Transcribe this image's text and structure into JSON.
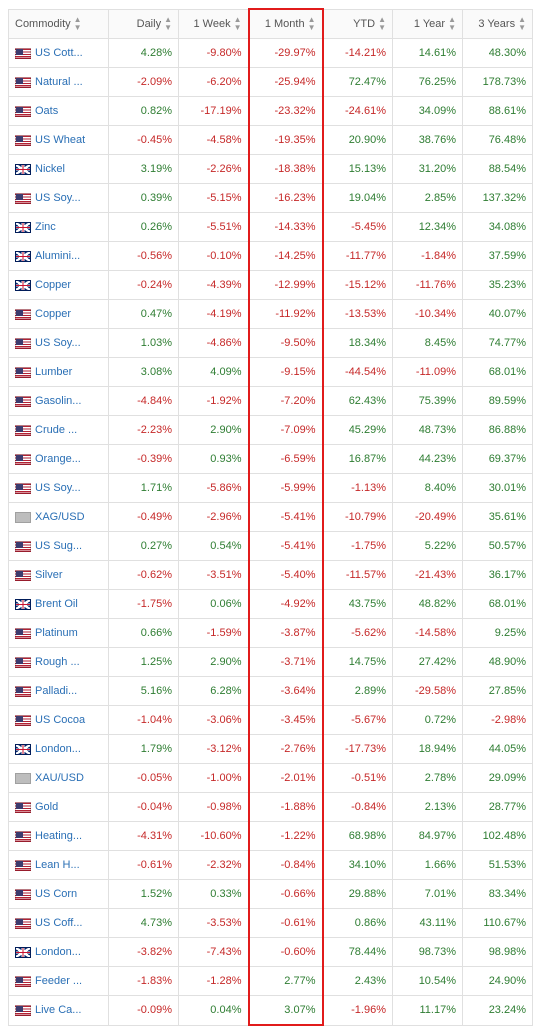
{
  "columns": [
    {
      "key": "name",
      "label": "Commodity"
    },
    {
      "key": "daily",
      "label": "Daily"
    },
    {
      "key": "week1",
      "label": "1 Week"
    },
    {
      "key": "month1",
      "label": "1 Month"
    },
    {
      "key": "ytd",
      "label": "YTD"
    },
    {
      "key": "year1",
      "label": "1 Year"
    },
    {
      "key": "year3",
      "label": "3 Years"
    }
  ],
  "highlight_column": "month1",
  "highlight_color": "#e11b1b",
  "colors": {
    "positive": "#2e7d32",
    "negative": "#c62828",
    "link": "#2a6fb5",
    "grid": "#e0e0e0",
    "header_bg": "#fafafa"
  },
  "rows": [
    {
      "flag": "us",
      "name": "US Cott...",
      "daily": 4.28,
      "week1": -9.8,
      "month1": -29.97,
      "ytd": -14.21,
      "year1": 14.61,
      "year3": 48.3
    },
    {
      "flag": "us",
      "name": "Natural ...",
      "daily": -2.09,
      "week1": -6.2,
      "month1": -25.94,
      "ytd": 72.47,
      "year1": 76.25,
      "year3": 178.73
    },
    {
      "flag": "us",
      "name": "Oats",
      "daily": 0.82,
      "week1": -17.19,
      "month1": -23.32,
      "ytd": -24.61,
      "year1": 34.09,
      "year3": 88.61
    },
    {
      "flag": "us",
      "name": "US Wheat",
      "daily": -0.45,
      "week1": -4.58,
      "month1": -19.35,
      "ytd": 20.9,
      "year1": 38.76,
      "year3": 76.48
    },
    {
      "flag": "uk",
      "name": "Nickel",
      "daily": 3.19,
      "week1": -2.26,
      "month1": -18.38,
      "ytd": 15.13,
      "year1": 31.2,
      "year3": 88.54
    },
    {
      "flag": "us",
      "name": "US Soy...",
      "daily": 0.39,
      "week1": -5.15,
      "month1": -16.23,
      "ytd": 19.04,
      "year1": 2.85,
      "year3": 137.32
    },
    {
      "flag": "uk",
      "name": "Zinc",
      "daily": 0.26,
      "week1": -5.51,
      "month1": -14.33,
      "ytd": -5.45,
      "year1": 12.34,
      "year3": 34.08
    },
    {
      "flag": "uk",
      "name": "Alumini...",
      "daily": -0.56,
      "week1": -0.1,
      "month1": -14.25,
      "ytd": -11.77,
      "year1": -1.84,
      "year3": 37.59
    },
    {
      "flag": "uk",
      "name": "Copper",
      "daily": -0.24,
      "week1": -4.39,
      "month1": -12.99,
      "ytd": -15.12,
      "year1": -11.76,
      "year3": 35.23
    },
    {
      "flag": "us",
      "name": "Copper",
      "daily": 0.47,
      "week1": -4.19,
      "month1": -11.92,
      "ytd": -13.53,
      "year1": -10.34,
      "year3": 40.07
    },
    {
      "flag": "us",
      "name": "US Soy...",
      "daily": 1.03,
      "week1": -4.86,
      "month1": -9.5,
      "ytd": 18.34,
      "year1": 8.45,
      "year3": 74.77
    },
    {
      "flag": "us",
      "name": "Lumber",
      "daily": 3.08,
      "week1": 4.09,
      "month1": -9.15,
      "ytd": -44.54,
      "year1": -11.09,
      "year3": 68.01
    },
    {
      "flag": "us",
      "name": "Gasolin...",
      "daily": -4.84,
      "week1": -1.92,
      "month1": -7.2,
      "ytd": 62.43,
      "year1": 75.39,
      "year3": 89.59
    },
    {
      "flag": "us",
      "name": "Crude ...",
      "daily": -2.23,
      "week1": 2.9,
      "month1": -7.09,
      "ytd": 45.29,
      "year1": 48.73,
      "year3": 86.88
    },
    {
      "flag": "us",
      "name": "Orange...",
      "daily": -0.39,
      "week1": 0.93,
      "month1": -6.59,
      "ytd": 16.87,
      "year1": 44.23,
      "year3": 69.37
    },
    {
      "flag": "us",
      "name": "US Soy...",
      "daily": 1.71,
      "week1": -5.86,
      "month1": -5.99,
      "ytd": -1.13,
      "year1": 8.4,
      "year3": 30.01
    },
    {
      "flag": "xx",
      "name": "XAG/USD",
      "daily": -0.49,
      "week1": -2.96,
      "month1": -5.41,
      "ytd": -10.79,
      "year1": -20.49,
      "year3": 35.61
    },
    {
      "flag": "us",
      "name": "US Sug...",
      "daily": 0.27,
      "week1": 0.54,
      "month1": -5.41,
      "ytd": -1.75,
      "year1": 5.22,
      "year3": 50.57
    },
    {
      "flag": "us",
      "name": "Silver",
      "daily": -0.62,
      "week1": -3.51,
      "month1": -5.4,
      "ytd": -11.57,
      "year1": -21.43,
      "year3": 36.17
    },
    {
      "flag": "uk",
      "name": "Brent Oil",
      "daily": -1.75,
      "week1": 0.06,
      "month1": -4.92,
      "ytd": 43.75,
      "year1": 48.82,
      "year3": 68.01
    },
    {
      "flag": "us",
      "name": "Platinum",
      "daily": 0.66,
      "week1": -1.59,
      "month1": -3.87,
      "ytd": -5.62,
      "year1": -14.58,
      "year3": 9.25
    },
    {
      "flag": "us",
      "name": "Rough ...",
      "daily": 1.25,
      "week1": 2.9,
      "month1": -3.71,
      "ytd": 14.75,
      "year1": 27.42,
      "year3": 48.9
    },
    {
      "flag": "us",
      "name": "Palladi...",
      "daily": 5.16,
      "week1": 6.28,
      "month1": -3.64,
      "ytd": 2.89,
      "year1": -29.58,
      "year3": 27.85
    },
    {
      "flag": "us",
      "name": "US Cocoa",
      "daily": -1.04,
      "week1": -3.06,
      "month1": -3.45,
      "ytd": -5.67,
      "year1": 0.72,
      "year3": -2.98
    },
    {
      "flag": "uk",
      "name": "London...",
      "daily": 1.79,
      "week1": -3.12,
      "month1": -2.76,
      "ytd": -17.73,
      "year1": 18.94,
      "year3": 44.05
    },
    {
      "flag": "xx",
      "name": "XAU/USD",
      "daily": -0.05,
      "week1": -1.0,
      "month1": -2.01,
      "ytd": -0.51,
      "year1": 2.78,
      "year3": 29.09
    },
    {
      "flag": "us",
      "name": "Gold",
      "daily": -0.04,
      "week1": -0.98,
      "month1": -1.88,
      "ytd": -0.84,
      "year1": 2.13,
      "year3": 28.77
    },
    {
      "flag": "us",
      "name": "Heating...",
      "daily": -4.31,
      "week1": -10.6,
      "month1": -1.22,
      "ytd": 68.98,
      "year1": 84.97,
      "year3": 102.48
    },
    {
      "flag": "us",
      "name": "Lean H...",
      "daily": -0.61,
      "week1": -2.32,
      "month1": -0.84,
      "ytd": 34.1,
      "year1": 1.66,
      "year3": 51.53
    },
    {
      "flag": "us",
      "name": "US Corn",
      "daily": 1.52,
      "week1": 0.33,
      "month1": -0.66,
      "ytd": 29.88,
      "year1": 7.01,
      "year3": 83.34
    },
    {
      "flag": "us",
      "name": "US Coff...",
      "daily": 4.73,
      "week1": -3.53,
      "month1": -0.61,
      "ytd": 0.86,
      "year1": 43.11,
      "year3": 110.67
    },
    {
      "flag": "uk",
      "name": "London...",
      "daily": -3.82,
      "week1": -7.43,
      "month1": -0.6,
      "ytd": 78.44,
      "year1": 98.73,
      "year3": 98.98
    },
    {
      "flag": "us",
      "name": "Feeder ...",
      "daily": -1.83,
      "week1": -1.28,
      "month1": 2.77,
      "ytd": 2.43,
      "year1": 10.54,
      "year3": 24.9
    },
    {
      "flag": "us",
      "name": "Live Ca...",
      "daily": -0.09,
      "week1": 0.04,
      "month1": 3.07,
      "ytd": -1.96,
      "year1": 11.17,
      "year3": 23.24
    }
  ]
}
